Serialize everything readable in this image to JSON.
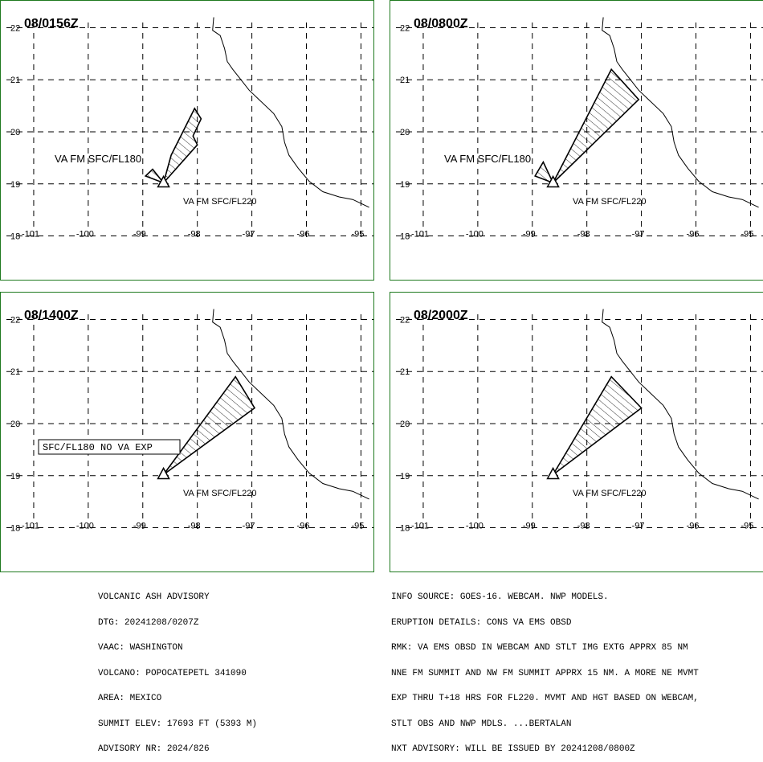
{
  "advisory_header": [
    "VOLCANIC ASH ADVISORY",
    "DTG: 20241208/0207Z",
    "VAAC: WASHINGTON",
    "VOLCANO: POPOCATEPETL 341090",
    "AREA: MEXICO",
    "SUMMIT ELEV: 17693 FT (5393 M)",
    "ADVISORY NR: 2024/826"
  ],
  "advisory_details": [
    "INFO SOURCE: GOES-16. WEBCAM. NWP MODELS.",
    "ERUPTION DETAILS: CONS VA EMS OBSD",
    "RMK: VA EMS OBSD IN WEBCAM AND STLT IMG EXTG APPRX 85 NM",
    "NNE FM SUMMIT AND NW FM SUMMIT APPRX 15 NM. A MORE NE MVMT",
    "EXP THRU T+18 HRS FOR FL220. MVMT AND HGT BASED ON WEBCAM,",
    "STLT OBS AND NWP MDLS. ...BERTALAN",
    "NXT ADVISORY: WILL BE ISSUED BY 20241208/0800Z"
  ],
  "map": {
    "lon_range": [
      -101.5,
      -94.8
    ],
    "lat_range": [
      17.9,
      22.1
    ],
    "lon_ticks": [
      "-101",
      "-100",
      "-99",
      "-98",
      "-97",
      "-96",
      "-95"
    ],
    "lat_ticks": [
      "18",
      "19",
      "20",
      "21",
      "22"
    ],
    "grid": "dashed",
    "colors": {
      "frame": "#1f7a1f",
      "lines": "#000000"
    },
    "volcano_symbol": "triangle-icon",
    "volcano_location": {
      "lon": -98.62,
      "lat": 19.02
    }
  },
  "panels": [
    {
      "title": "08/0156Z",
      "annotations": [
        "VA FM SFC/FL180",
        "VA FM SFC/FL220"
      ],
      "boxed_note": "",
      "ash_areas": [
        {
          "label": "VA FM SFC/FL220",
          "polygon": [
            [
              -98.62,
              19.02
            ],
            [
              -98.95,
              19.15
            ],
            [
              -98.82,
              19.28
            ],
            [
              -98.62,
              19.02
            ]
          ]
        },
        {
          "label": "VA FM SFC/FL180",
          "polygon": [
            [
              -98.62,
              19.02
            ],
            [
              -98.48,
              19.55
            ],
            [
              -98.05,
              20.45
            ],
            [
              -97.93,
              20.25
            ],
            [
              -98.08,
              19.92
            ],
            [
              -98.0,
              19.75
            ],
            [
              -98.62,
              19.02
            ]
          ]
        }
      ]
    },
    {
      "title": "08/0800Z",
      "annotations": [
        "VA FM SFC/FL180",
        "VA FM SFC/FL220"
      ],
      "boxed_note": "",
      "ash_areas": [
        {
          "label": "VA FM SFC/FL220",
          "polygon": [
            [
              -98.62,
              19.02
            ],
            [
              -98.95,
              19.15
            ],
            [
              -98.8,
              19.42
            ],
            [
              -98.62,
              19.02
            ]
          ]
        },
        {
          "label": "VA FM SFC/FL180",
          "polygon": [
            [
              -98.62,
              19.02
            ],
            [
              -97.55,
              21.2
            ],
            [
              -97.05,
              20.62
            ],
            [
              -98.62,
              19.02
            ]
          ]
        }
      ]
    },
    {
      "title": "08/1400Z",
      "annotations": [
        "VA FM SFC/FL220"
      ],
      "boxed_note": "SFC/FL180 NO VA EXP",
      "ash_areas": [
        {
          "label": "VA FM SFC/FL220",
          "polygon": [
            [
              -98.62,
              19.02
            ],
            [
              -97.3,
              20.9
            ],
            [
              -96.95,
              20.3
            ],
            [
              -98.62,
              19.02
            ]
          ]
        }
      ]
    },
    {
      "title": "08/2000Z",
      "annotations": [
        "VA FM SFC/FL220"
      ],
      "boxed_note": "",
      "ash_areas": [
        {
          "label": "VA FM SFC/FL220",
          "polygon": [
            [
              -98.62,
              19.02
            ],
            [
              -97.55,
              20.9
            ],
            [
              -97.0,
              20.3
            ],
            [
              -98.62,
              19.02
            ]
          ]
        }
      ]
    }
  ],
  "coastline": [
    [
      -97.7,
      22.2
    ],
    [
      -97.72,
      21.95
    ],
    [
      -97.58,
      21.85
    ],
    [
      -97.5,
      21.6
    ],
    [
      -97.45,
      21.35
    ],
    [
      -97.35,
      21.2
    ],
    [
      -97.2,
      21.0
    ],
    [
      -97.05,
      20.8
    ],
    [
      -96.85,
      20.6
    ],
    [
      -96.6,
      20.35
    ],
    [
      -96.45,
      20.1
    ],
    [
      -96.4,
      19.8
    ],
    [
      -96.32,
      19.55
    ],
    [
      -96.15,
      19.3
    ],
    [
      -95.95,
      19.05
    ],
    [
      -95.7,
      18.85
    ],
    [
      -95.4,
      18.75
    ],
    [
      -95.15,
      18.7
    ],
    [
      -94.85,
      18.55
    ]
  ]
}
